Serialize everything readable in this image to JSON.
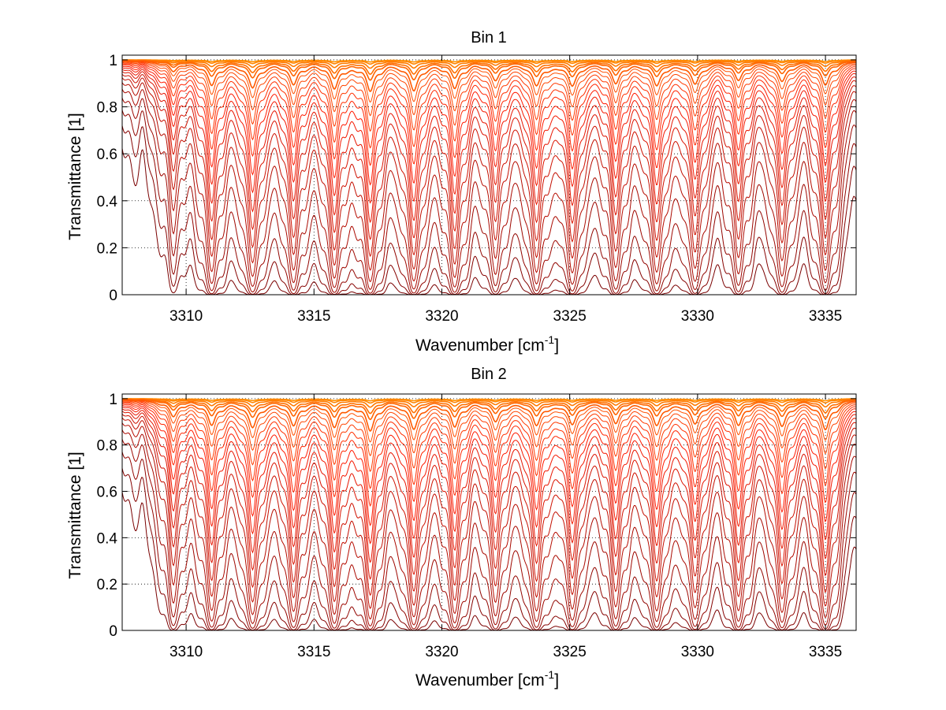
{
  "chart_data": [
    {
      "type": "line",
      "title": "Bin 1",
      "xlabel": "Wavenumber [cm",
      "xlabel_sup": "-1",
      "xlabel_end": "]",
      "ylabel": "Transmittance [1]",
      "xlim": [
        3307.5,
        3336.2
      ],
      "ylim": [
        0,
        1.02
      ],
      "xticks": [
        "3310",
        "3315",
        "3320",
        "3325",
        "3330",
        "3335"
      ],
      "yticks": [
        "0",
        "0.2",
        "0.4",
        "0.6",
        "0.8",
        "1"
      ],
      "grid": true,
      "line_centers": [
        3309.5,
        3311.0,
        3312.6,
        3314.2,
        3315.8,
        3317.2,
        3318.9,
        3320.5,
        3322.1,
        3323.7,
        3325.1,
        3326.8,
        3328.4,
        3329.9,
        3331.6,
        3333.3,
        3335.0
      ],
      "line_strengths": [
        0.35,
        0.9,
        1.0,
        0.85,
        1.0,
        1.1,
        1.1,
        1.0,
        0.7,
        0.9,
        0.9,
        0.8,
        0.9,
        0.85,
        0.7,
        0.75,
        0.9
      ],
      "optical_depth_scales": [
        0.005,
        0.01,
        0.02,
        0.035,
        0.05,
        0.08,
        0.11,
        0.15,
        0.2,
        0.26,
        0.33,
        0.42,
        0.52,
        0.65,
        0.8,
        1.0,
        1.25,
        1.6,
        2.1,
        2.8,
        3.8,
        5.2,
        7.5
      ]
    },
    {
      "type": "line",
      "title": "Bin 2",
      "xlabel": "Wavenumber [cm",
      "xlabel_sup": "-1",
      "xlabel_end": "]",
      "ylabel": "Transmittance [1]",
      "xlim": [
        3307.5,
        3336.2
      ],
      "ylim": [
        0,
        1.02
      ],
      "xticks": [
        "3310",
        "3315",
        "3320",
        "3325",
        "3330",
        "3335"
      ],
      "yticks": [
        "0",
        "0.2",
        "0.4",
        "0.6",
        "0.8",
        "1"
      ],
      "grid": true,
      "line_centers": [
        3309.5,
        3311.0,
        3312.6,
        3314.2,
        3315.8,
        3317.2,
        3318.9,
        3320.5,
        3322.1,
        3323.7,
        3325.1,
        3326.8,
        3328.4,
        3329.9,
        3331.6,
        3333.3,
        3335.0
      ],
      "line_strengths": [
        0.6,
        0.95,
        1.05,
        0.95,
        1.0,
        1.15,
        1.1,
        1.0,
        0.8,
        0.95,
        0.9,
        0.85,
        0.95,
        0.9,
        0.95,
        1.0,
        1.15
      ],
      "optical_depth_scales": [
        0.005,
        0.01,
        0.02,
        0.035,
        0.05,
        0.08,
        0.11,
        0.15,
        0.2,
        0.26,
        0.33,
        0.42,
        0.52,
        0.65,
        0.8,
        1.0,
        1.25,
        1.6,
        2.1,
        2.8,
        3.8,
        5.2,
        7.5
      ]
    }
  ],
  "colors": {
    "weak": "#ff9000",
    "mid": "#ff1a00",
    "strong": "#7a0000",
    "grid": "#000000",
    "axis": "#000000"
  }
}
